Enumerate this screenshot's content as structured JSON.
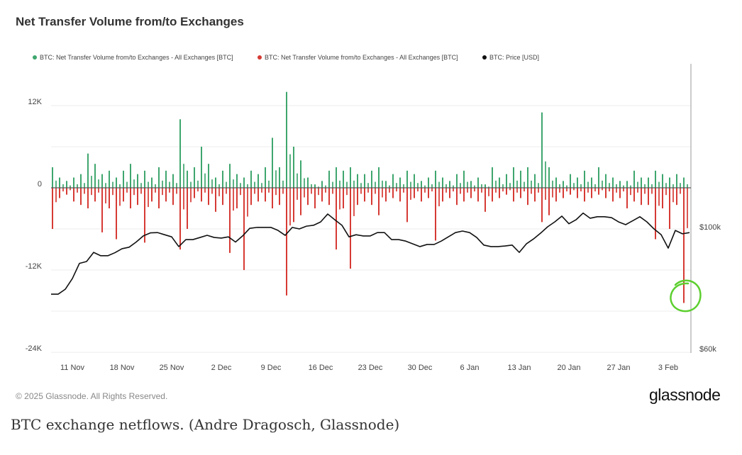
{
  "title": "Net Transfer Volume from/to Exchanges",
  "footer": "© 2025 Glassnode. All Rights Reserved.",
  "logo": "glassnode",
  "caption": "BTC exchange netflows. (Andre Dragosch, Glassnode)",
  "chart_data": {
    "type": "bar",
    "title": "Net Transfer Volume from/to Exchanges",
    "start_date": "2024-11-08",
    "interval": "1 day",
    "legend_position": "top-left",
    "grid": true,
    "series": [
      {
        "name": "BTC: Net Transfer Volume from/to Exchanges - All Exchanges [BTC]",
        "kind": "bar",
        "color": "#3fa66e",
        "axis": "left",
        "unit": "K BTC",
        "values": [
          3,
          1.5,
          1,
          1.5,
          2,
          5,
          3.5,
          2,
          2.5,
          1.5,
          2.5,
          3.5,
          2,
          2.5,
          1.5,
          3,
          2.5,
          2,
          10,
          2.5,
          3,
          6,
          3.5,
          1.5,
          2.5,
          3.5,
          2,
          1.5,
          2.5,
          2,
          3,
          7.3,
          3,
          14,
          6,
          4,
          1.5,
          0.5,
          1,
          2.5,
          3,
          2.5,
          3,
          2,
          2,
          2.5,
          3,
          1,
          2,
          1.5,
          2.5,
          2,
          1,
          1.5,
          2.5,
          1.5,
          1,
          2,
          2.5,
          1,
          1.5,
          0.5,
          3,
          1.5,
          2,
          3,
          2.5,
          3,
          2,
          11,
          3,
          1.5,
          1,
          2,
          1.5,
          2.5,
          1.5,
          3,
          2,
          1.5,
          1,
          1,
          2.5,
          1.5,
          1.5,
          2.5,
          2,
          1.5,
          2,
          1.5
        ]
      },
      {
        "name": "BTC: Net Transfer Volume from/to Exchanges - All Exchanges [BTC]",
        "kind": "bar",
        "color": "#d63a34",
        "axis": "left",
        "unit": "K BTC",
        "values": [
          -6,
          -1.5,
          -1,
          -2,
          -2.5,
          -3,
          -2,
          -6.5,
          -3,
          -7.5,
          -2,
          -3,
          -2.5,
          -8,
          -2,
          -3,
          -2,
          -2.5,
          -9,
          -6,
          -1.5,
          -2,
          -2.5,
          -3.5,
          -2.5,
          -9.5,
          -3,
          -12,
          -2.5,
          -2,
          -2,
          -3,
          -2.5,
          -15.7,
          -5,
          -4,
          -2.5,
          -3,
          -2,
          -2.5,
          -9,
          -3,
          -11.8,
          -2.5,
          -2,
          -2.5,
          -4,
          -2,
          -1.5,
          -2,
          -5,
          -1.5,
          -2,
          -1.5,
          -7.7,
          -2,
          -1.5,
          -2.5,
          -2,
          -1.5,
          -2,
          -3.5,
          -2,
          -1.5,
          -1,
          -2,
          -1.5,
          -2.5,
          -2,
          -5,
          -4,
          -2,
          -1.5,
          -1,
          -1.5,
          -2,
          -1.5,
          -1,
          -1.5,
          -2,
          -1.5,
          -3,
          -2,
          -2.5,
          -2.5,
          -7.5,
          -3,
          -6,
          -2.5,
          -16.8
        ]
      },
      {
        "name": "BTC: Price [USD]",
        "kind": "line",
        "color": "#111111",
        "axis": "right",
        "unit": "K USD",
        "values": [
          77.9,
          77.9,
          79.5,
          83,
          88,
          88.6,
          91.6,
          90.5,
          90.5,
          91.5,
          92.8,
          93.3,
          95,
          97,
          98,
          98.1,
          97.4,
          96.7,
          93.5,
          95.8,
          95.8,
          96.5,
          97.2,
          96.5,
          96.3,
          96.7,
          95,
          97,
          99.5,
          99.8,
          99.8,
          99.8,
          98.8,
          97.2,
          99.8,
          99.3,
          100.2,
          100.5,
          101.6,
          104.2,
          102.3,
          100.5,
          96.7,
          97.4,
          97,
          97,
          98.1,
          98.1,
          95.8,
          95.8,
          95.3,
          94.4,
          93.5,
          94.2,
          94.2,
          95.3,
          96.7,
          98.1,
          98.6,
          98.1,
          96.5,
          94,
          93.5,
          93.5,
          93.7,
          94,
          91.6,
          94.4,
          96,
          97.9,
          100,
          101.6,
          103.5,
          101,
          102.3,
          104.5,
          102.8,
          103.3,
          103.3,
          103,
          101.6,
          100.7,
          102,
          103.3,
          101.6,
          99.3,
          97.4,
          93,
          98.8,
          97.7,
          98.1
        ]
      }
    ],
    "left_axis": {
      "ylim": [
        -24,
        15
      ],
      "ticks": [
        {
          "v": 12,
          "label": "12K"
        },
        {
          "v": 0,
          "label": "0"
        },
        {
          "v": -12,
          "label": "-12K"
        },
        {
          "v": -24,
          "label": "-24K"
        }
      ]
    },
    "right_axis": {
      "ylim": [
        60,
        128
      ],
      "ticks": [
        {
          "v": 100,
          "label": "$100k"
        },
        {
          "v": 60,
          "label": "$60k"
        }
      ]
    },
    "x_ticks": [
      {
        "day": 3,
        "label": "11 Nov"
      },
      {
        "day": 10,
        "label": "18 Nov"
      },
      {
        "day": 17,
        "label": "25 Nov"
      },
      {
        "day": 24,
        "label": "2 Dec"
      },
      {
        "day": 31,
        "label": "9 Dec"
      },
      {
        "day": 38,
        "label": "16 Dec"
      },
      {
        "day": 45,
        "label": "23 Dec"
      },
      {
        "day": 52,
        "label": "30 Dec"
      },
      {
        "day": 59,
        "label": "6 Jan"
      },
      {
        "day": 66,
        "label": "13 Jan"
      },
      {
        "day": 73,
        "label": "20 Jan"
      },
      {
        "day": 80,
        "label": "27 Jan"
      },
      {
        "day": 87,
        "label": "3 Feb"
      }
    ],
    "annotation": {
      "type": "hand-drawn circle",
      "color": "#5ccf2f",
      "day": 89
    }
  }
}
